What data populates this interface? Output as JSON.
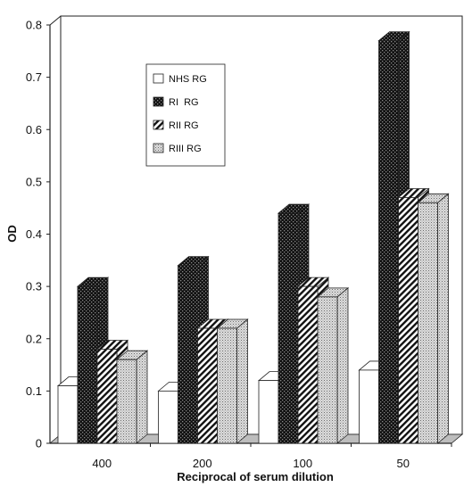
{
  "chart_data": {
    "type": "bar",
    "title": "",
    "xlabel": "Reciprocal of serum dilution",
    "ylabel": "OD",
    "categories": [
      "400",
      "200",
      "100",
      "50"
    ],
    "ylim": [
      0,
      0.8
    ],
    "yticks": [
      "0",
      "0.1",
      "0.2",
      "0.3",
      "0.4",
      "0.5",
      "0.6",
      "0.7",
      "0.8"
    ],
    "grid": false,
    "legend_position": "top-left",
    "series": [
      {
        "name": "NHS RG",
        "values": [
          0.11,
          0.1,
          0.12,
          0.14
        ],
        "pattern": "white"
      },
      {
        "name": "RI  RG",
        "values": [
          0.3,
          0.34,
          0.44,
          0.77
        ],
        "pattern": "dark-checker"
      },
      {
        "name": "RII RG",
        "values": [
          0.18,
          0.22,
          0.3,
          0.47
        ],
        "pattern": "diagonal-stripes"
      },
      {
        "name": "RIII RG",
        "values": [
          0.16,
          0.22,
          0.28,
          0.46
        ],
        "pattern": "light-dots"
      }
    ]
  }
}
